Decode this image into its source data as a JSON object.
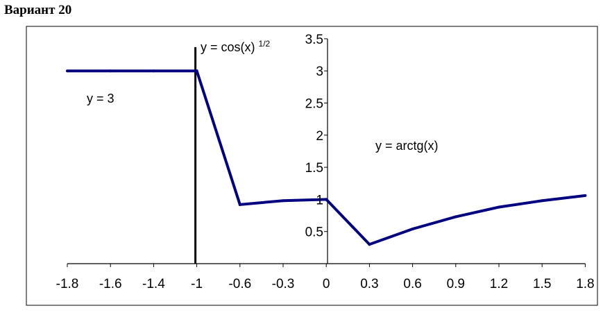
{
  "page": {
    "title": "Вариант 20"
  },
  "chart_data": {
    "type": "line",
    "title": "",
    "xlabel": "",
    "ylabel": "",
    "categories": [
      "-1.8",
      "-1.6",
      "-1.4",
      "-1",
      "-0.6",
      "-0.3",
      "0",
      "0.3",
      "0.6",
      "0.9",
      "1.2",
      "1.5",
      "1.8"
    ],
    "series": [
      {
        "values": [
          3,
          3,
          3,
          3,
          0.92,
          0.98,
          1.0,
          0.3,
          0.54,
          0.73,
          0.88,
          0.98,
          1.06
        ]
      }
    ],
    "y_ticks": [
      "0.5",
      "1",
      "1.5",
      "2",
      "2.5",
      "3",
      "3.5"
    ],
    "ylim": [
      0,
      3.5
    ],
    "grid": false,
    "vertical_marker_at": "-1",
    "annotations": {
      "left": "y = 3",
      "middle_base": "y = cos(x)",
      "middle_sup": "1/2",
      "right": "y = arctg(x)"
    },
    "line_color": "#000080"
  }
}
